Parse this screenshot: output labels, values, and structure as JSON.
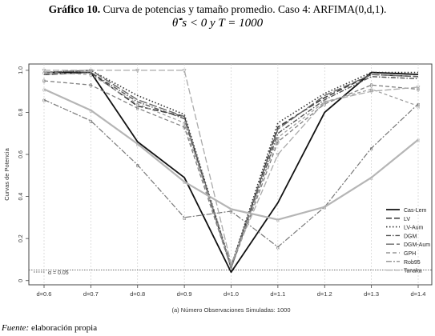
{
  "header": {
    "title_bold": "Gráfico 10.",
    "title_rest": "Curva de potencias y tamaño promedio. Caso 4: ARFIMA(0,d,1).",
    "condition": "θ̂ˇs < 0 y T = 1000"
  },
  "footer": {
    "source_label": "Fuente:",
    "source_text": "elaboración propia"
  },
  "chart_data": {
    "type": "line",
    "xlabel": "(a) Número Observaciones Simuladas: 1000",
    "ylabel": "Curvas de Potencia",
    "categories": [
      "d=0.6",
      "d=0.7",
      "d=0.8",
      "d=0.9",
      "d=1.0",
      "d=1.1",
      "d=1.2",
      "d=1.3",
      "d=1.4"
    ],
    "ylim": [
      -0.02,
      1.03
    ],
    "yticks": [
      "0",
      "0.2",
      "0.4",
      "0.6",
      "0.8",
      "1.0"
    ],
    "reference_line": {
      "value": 0.05,
      "label": "α = 0.05"
    },
    "legend_position": "bottom-right",
    "series": [
      {
        "name": "Cas-Lem",
        "color": "#111111",
        "dash": "",
        "width": 1.8,
        "marker": "",
        "values": [
          0.99,
          0.99,
          0.66,
          0.49,
          0.04,
          0.37,
          0.8,
          0.99,
          0.98
        ]
      },
      {
        "name": "LV",
        "color": "#333333",
        "dash": "7,3",
        "width": 1.5,
        "marker": "",
        "values": [
          0.98,
          0.99,
          0.83,
          0.78,
          0.06,
          0.73,
          0.87,
          0.98,
          0.97
        ]
      },
      {
        "name": "LV-Aum",
        "color": "#333333",
        "dash": "1.5,2.5",
        "width": 1.6,
        "marker": "",
        "values": [
          0.99,
          1.0,
          0.88,
          0.79,
          0.07,
          0.75,
          0.89,
          0.99,
          0.99
        ]
      },
      {
        "name": "DGM",
        "color": "#555555",
        "dash": "6,2,1.5,2",
        "width": 1.4,
        "marker": "",
        "values": [
          0.98,
          0.99,
          0.85,
          0.77,
          0.06,
          0.7,
          0.86,
          0.97,
          0.96
        ]
      },
      {
        "name": "DGM-Aum",
        "color": "#666666",
        "dash": "10,3",
        "width": 1.4,
        "marker": "",
        "values": [
          0.99,
          1.0,
          0.86,
          0.78,
          0.07,
          0.72,
          0.88,
          0.98,
          0.97
        ]
      },
      {
        "name": "GPH",
        "color": "#808080",
        "dash": "5,3",
        "width": 1.3,
        "marker": "θ",
        "values": [
          0.95,
          0.93,
          0.82,
          0.73,
          0.06,
          0.66,
          0.84,
          0.93,
          0.91
        ]
      },
      {
        "name": "Rob95",
        "color": "#777777",
        "dash": "7,2,2,2",
        "width": 1.2,
        "marker": "α",
        "values": [
          0.86,
          0.76,
          0.55,
          0.3,
          0.33,
          0.16,
          0.35,
          0.63,
          0.84
        ]
      },
      {
        "name": "Tanaka",
        "color": "#aaaaaa",
        "dash": "8,3",
        "width": 1.3,
        "marker": "∇",
        "values": [
          1.0,
          1.0,
          1.0,
          1.0,
          0.08,
          0.6,
          0.85,
          0.9,
          0.92
        ]
      },
      {
        "name": "",
        "color": "#b5b5b5",
        "dash": "",
        "width": 2.2,
        "marker": "α",
        "values": [
          0.91,
          0.81,
          0.65,
          0.47,
          0.34,
          0.29,
          0.35,
          0.49,
          0.67
        ]
      },
      {
        "name": "",
        "color": "#9a9a9a",
        "dash": "4,3",
        "width": 1.2,
        "marker": "α",
        "values": [
          0.99,
          0.98,
          0.84,
          0.75,
          0.07,
          0.68,
          0.85,
          0.91,
          0.83
        ]
      }
    ]
  }
}
